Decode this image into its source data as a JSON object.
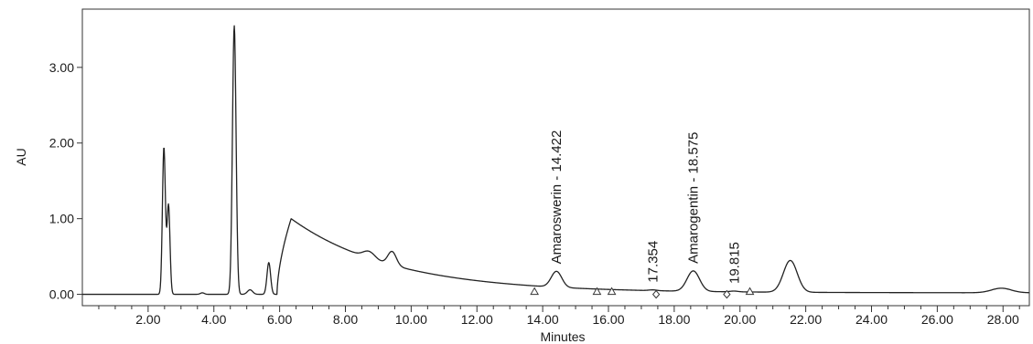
{
  "chart_data": {
    "type": "line",
    "xlabel": "Minutes",
    "ylabel": "AU",
    "xlim": [
      0.0,
      28.8
    ],
    "ylim": [
      -0.15,
      3.77
    ],
    "xticks": [
      2,
      4,
      6,
      8,
      10,
      12,
      14,
      16,
      18,
      20,
      22,
      24,
      26,
      28
    ],
    "xtick_labels": [
      "2.00",
      "4.00",
      "6.00",
      "8.00",
      "10.00",
      "12.00",
      "14.00",
      "16.00",
      "18.00",
      "20.00",
      "22.00",
      "24.00",
      "26.00",
      "28.00"
    ],
    "yticks": [
      0,
      1,
      2,
      3
    ],
    "ytick_labels": [
      "0.00",
      "1.00",
      "2.00",
      "3.00"
    ],
    "minor_x_step": 0.5,
    "grid": false,
    "line_color": "#222222",
    "baseline": 0.0,
    "peaks": [
      {
        "rt": 2.48,
        "height": 1.94,
        "sigma": 0.045
      },
      {
        "rt": 2.62,
        "height": 1.18,
        "sigma": 0.045
      },
      {
        "rt": 3.65,
        "height": 0.02,
        "sigma": 0.06
      },
      {
        "rt": 4.62,
        "height": 3.55,
        "sigma": 0.055
      },
      {
        "rt": 5.1,
        "height": 0.06,
        "sigma": 0.08
      },
      {
        "rt": 5.67,
        "height": 0.42,
        "sigma": 0.055
      },
      {
        "rt": 8.72,
        "height": 0.09,
        "sigma": 0.18
      },
      {
        "rt": 9.42,
        "height": 0.18,
        "sigma": 0.13
      },
      {
        "rt": 14.42,
        "height": 0.21,
        "sigma": 0.16
      },
      {
        "rt": 17.35,
        "height": 0.01,
        "sigma": 0.12
      },
      {
        "rt": 18.58,
        "height": 0.27,
        "sigma": 0.19
      },
      {
        "rt": 19.82,
        "height": 0.01,
        "sigma": 0.12
      },
      {
        "rt": 21.53,
        "height": 0.42,
        "sigma": 0.21
      },
      {
        "rt": 27.95,
        "height": 0.06,
        "sigma": 0.3
      }
    ],
    "broad_hump": {
      "start": 5.92,
      "peak": 6.35,
      "peak_value": 1.0,
      "rise_exponent": 0.6,
      "decay_rate": 0.32,
      "floor": 0.02
    },
    "labels": [
      {
        "text": "Amaroswerin - 14.422",
        "rt": 14.42
      },
      {
        "text": "17.354",
        "rt": 17.35
      },
      {
        "text": "Amarogentin - 18.575",
        "rt": 18.58
      },
      {
        "text": "19.815",
        "rt": 19.82
      }
    ],
    "markers": [
      {
        "x": 13.75,
        "shape": "triangle"
      },
      {
        "x": 15.65,
        "shape": "triangle"
      },
      {
        "x": 16.1,
        "shape": "triangle"
      },
      {
        "x": 17.45,
        "shape": "diamond"
      },
      {
        "x": 19.6,
        "shape": "diamond"
      },
      {
        "x": 20.3,
        "shape": "triangle"
      }
    ]
  }
}
